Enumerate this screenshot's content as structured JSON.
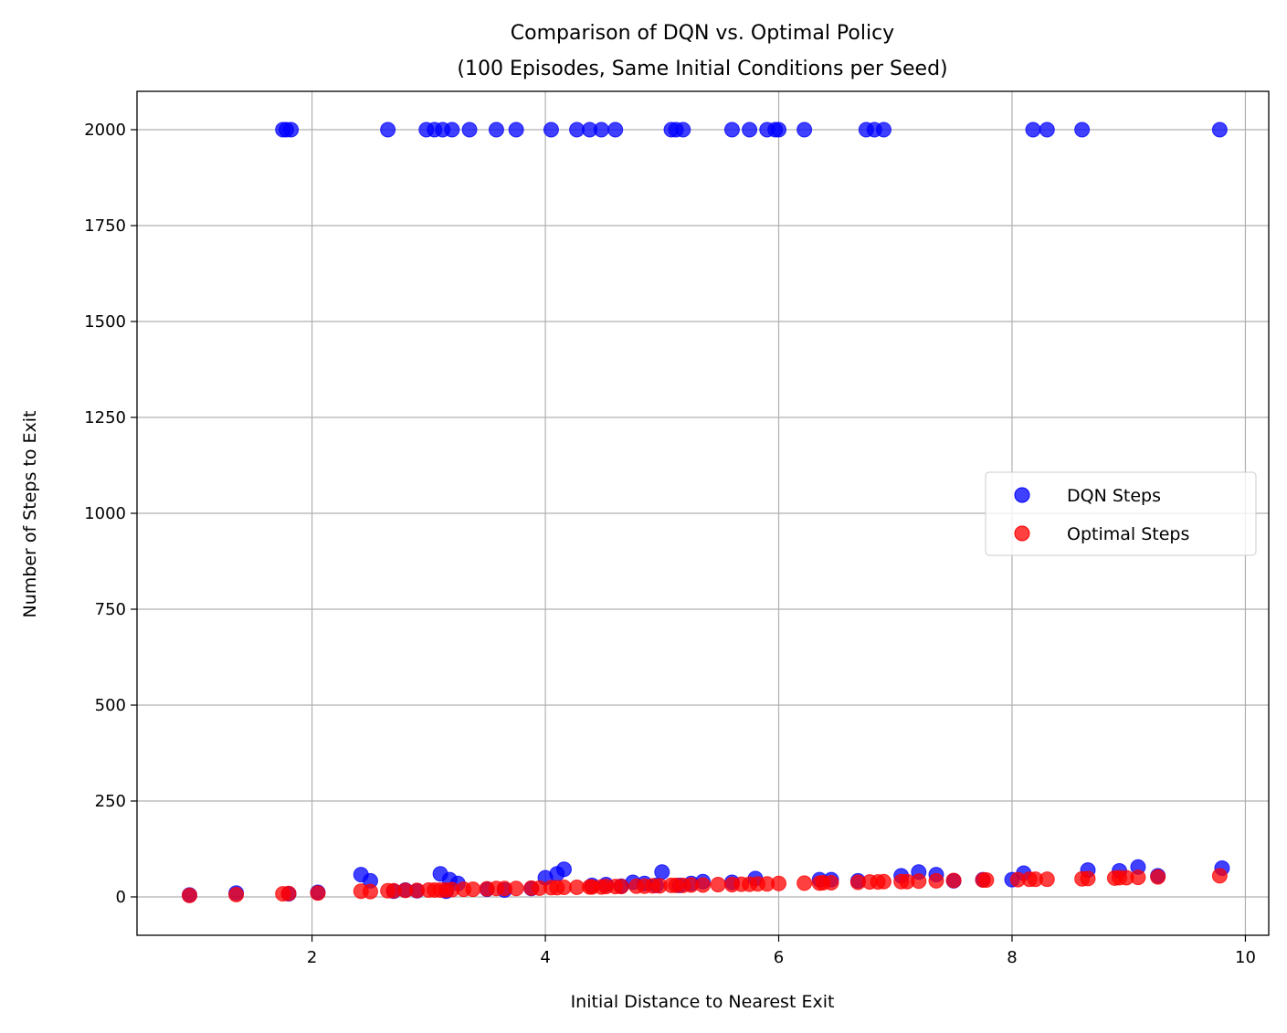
{
  "chart_data": {
    "type": "scatter",
    "title_line1": "Comparison of DQN vs. Optimal Policy",
    "title_line2": "(100 Episodes, Same Initial Conditions per Seed)",
    "xlabel": "Initial Distance to Nearest Exit",
    "ylabel": "Number of Steps to Exit",
    "xlim": [
      0.5,
      10.2
    ],
    "ylim": [
      -100,
      2100
    ],
    "xticks": [
      2,
      4,
      6,
      8,
      10
    ],
    "yticks": [
      0,
      250,
      500,
      750,
      1000,
      1250,
      1500,
      1750,
      2000
    ],
    "grid": true,
    "legend_position": "center-right",
    "series": [
      {
        "name": "DQN Steps",
        "color": "#0000ff",
        "points": [
          [
            0.95,
            5
          ],
          [
            1.35,
            10
          ],
          [
            1.75,
            2000
          ],
          [
            1.78,
            2000
          ],
          [
            1.8,
            8
          ],
          [
            1.82,
            2000
          ],
          [
            2.05,
            12
          ],
          [
            2.42,
            58
          ],
          [
            2.5,
            42
          ],
          [
            2.65,
            2000
          ],
          [
            2.7,
            15
          ],
          [
            2.8,
            18
          ],
          [
            2.9,
            16
          ],
          [
            2.98,
            2000
          ],
          [
            3.05,
            2000
          ],
          [
            3.1,
            60
          ],
          [
            3.12,
            2000
          ],
          [
            3.15,
            15
          ],
          [
            3.18,
            45
          ],
          [
            3.2,
            2000
          ],
          [
            3.25,
            35
          ],
          [
            3.35,
            2000
          ],
          [
            3.5,
            20
          ],
          [
            3.58,
            2000
          ],
          [
            3.65,
            18
          ],
          [
            3.75,
            2000
          ],
          [
            3.88,
            22
          ],
          [
            4.0,
            50
          ],
          [
            4.05,
            2000
          ],
          [
            4.1,
            60
          ],
          [
            4.16,
            72
          ],
          [
            4.27,
            2000
          ],
          [
            4.38,
            2000
          ],
          [
            4.4,
            30
          ],
          [
            4.48,
            2000
          ],
          [
            4.52,
            32
          ],
          [
            4.6,
            2000
          ],
          [
            4.65,
            28
          ],
          [
            4.75,
            38
          ],
          [
            4.85,
            35
          ],
          [
            4.95,
            30
          ],
          [
            5.0,
            65
          ],
          [
            5.08,
            2000
          ],
          [
            5.12,
            2000
          ],
          [
            5.15,
            30
          ],
          [
            5.18,
            2000
          ],
          [
            5.25,
            35
          ],
          [
            5.35,
            40
          ],
          [
            5.6,
            2000
          ],
          [
            5.6,
            38
          ],
          [
            5.75,
            2000
          ],
          [
            5.8,
            48
          ],
          [
            5.9,
            2000
          ],
          [
            5.97,
            2000
          ],
          [
            6.0,
            2000
          ],
          [
            6.22,
            2000
          ],
          [
            6.35,
            45
          ],
          [
            6.45,
            45
          ],
          [
            6.68,
            42
          ],
          [
            6.75,
            2000
          ],
          [
            6.82,
            2000
          ],
          [
            6.9,
            2000
          ],
          [
            7.05,
            55
          ],
          [
            7.2,
            65
          ],
          [
            7.35,
            58
          ],
          [
            7.5,
            42
          ],
          [
            7.75,
            45
          ],
          [
            8.0,
            45
          ],
          [
            8.1,
            62
          ],
          [
            8.18,
            2000
          ],
          [
            8.3,
            2000
          ],
          [
            8.6,
            2000
          ],
          [
            8.65,
            70
          ],
          [
            8.92,
            68
          ],
          [
            9.08,
            78
          ],
          [
            9.25,
            55
          ],
          [
            9.78,
            2000
          ],
          [
            9.8,
            75
          ]
        ]
      },
      {
        "name": "Optimal Steps",
        "color": "#ff0000",
        "points": [
          [
            0.95,
            4
          ],
          [
            1.35,
            6
          ],
          [
            1.75,
            8
          ],
          [
            1.8,
            9
          ],
          [
            2.05,
            10
          ],
          [
            2.42,
            15
          ],
          [
            2.5,
            14
          ],
          [
            2.65,
            16
          ],
          [
            2.7,
            16
          ],
          [
            2.8,
            17
          ],
          [
            2.9,
            17
          ],
          [
            3.0,
            18
          ],
          [
            3.05,
            18
          ],
          [
            3.1,
            18
          ],
          [
            3.15,
            18
          ],
          [
            3.2,
            19
          ],
          [
            3.3,
            20
          ],
          [
            3.38,
            20
          ],
          [
            3.5,
            21
          ],
          [
            3.58,
            22
          ],
          [
            3.65,
            22
          ],
          [
            3.75,
            22
          ],
          [
            3.88,
            23
          ],
          [
            3.95,
            23
          ],
          [
            4.05,
            24
          ],
          [
            4.1,
            24
          ],
          [
            4.16,
            25
          ],
          [
            4.27,
            25
          ],
          [
            4.38,
            26
          ],
          [
            4.4,
            26
          ],
          [
            4.48,
            26
          ],
          [
            4.52,
            27
          ],
          [
            4.6,
            27
          ],
          [
            4.65,
            27
          ],
          [
            4.78,
            28
          ],
          [
            4.85,
            28
          ],
          [
            4.92,
            29
          ],
          [
            4.98,
            29
          ],
          [
            5.08,
            30
          ],
          [
            5.12,
            30
          ],
          [
            5.18,
            30
          ],
          [
            5.25,
            31
          ],
          [
            5.35,
            31
          ],
          [
            5.48,
            32
          ],
          [
            5.6,
            32
          ],
          [
            5.68,
            33
          ],
          [
            5.75,
            33
          ],
          [
            5.82,
            34
          ],
          [
            5.9,
            34
          ],
          [
            6.0,
            35
          ],
          [
            6.22,
            36
          ],
          [
            6.35,
            36
          ],
          [
            6.38,
            37
          ],
          [
            6.45,
            37
          ],
          [
            6.68,
            38
          ],
          [
            6.78,
            39
          ],
          [
            6.85,
            39
          ],
          [
            6.9,
            40
          ],
          [
            7.05,
            40
          ],
          [
            7.1,
            40
          ],
          [
            7.2,
            41
          ],
          [
            7.35,
            42
          ],
          [
            7.5,
            43
          ],
          [
            7.75,
            44
          ],
          [
            7.78,
            44
          ],
          [
            8.05,
            45
          ],
          [
            8.15,
            46
          ],
          [
            8.2,
            46
          ],
          [
            8.3,
            46
          ],
          [
            8.6,
            47
          ],
          [
            8.65,
            48
          ],
          [
            8.88,
            49
          ],
          [
            8.92,
            50
          ],
          [
            8.98,
            50
          ],
          [
            9.08,
            51
          ],
          [
            9.25,
            52
          ],
          [
            9.78,
            55
          ]
        ]
      }
    ]
  }
}
